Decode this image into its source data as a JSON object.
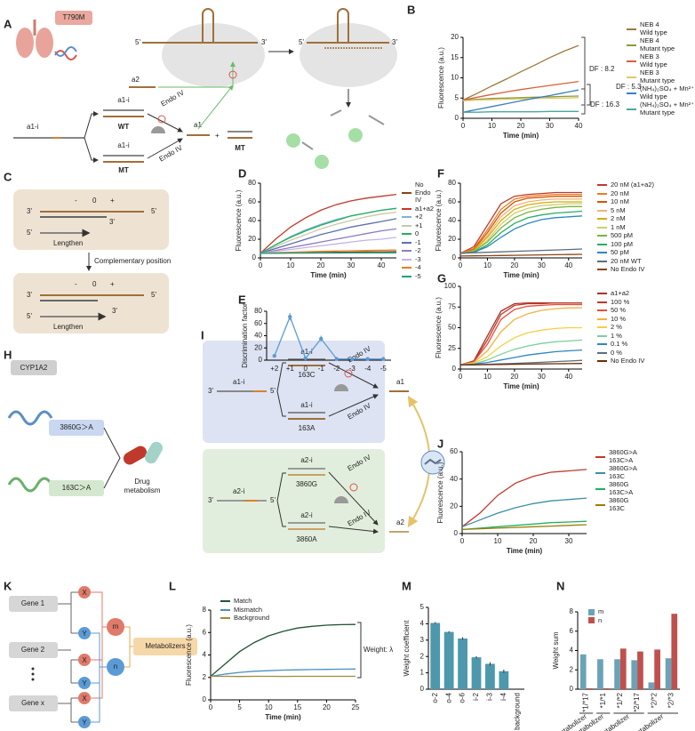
{
  "panel_letters": [
    "A",
    "B",
    "C",
    "D",
    "E",
    "F",
    "G",
    "H",
    "I",
    "J",
    "K",
    "L",
    "M",
    "N"
  ],
  "diagram_a": {
    "mutation": "T790M",
    "probe": "a2",
    "five": "5'",
    "three": "3'",
    "wt": "WT",
    "mt": "MT",
    "input": "a1-i",
    "enzyme": "Endo IV",
    "product": "a1",
    "plus": "+"
  },
  "diagram_c": {
    "three": "3'",
    "five": "5'",
    "minus": "-",
    "zero": "0",
    "plus": "+",
    "lengthen": "Lengthen",
    "step": "Complementary position"
  },
  "diagram_h": {
    "gene": "CYP1A2",
    "snp1": "3860G＞A",
    "snp2": "163C＞A",
    "outcome_1": "Drug",
    "outcome_2": "metabolism"
  },
  "diagram_i": {
    "three": "3'",
    "five": "5'",
    "input1": "a1-i",
    "input2": "a2-i",
    "allele1": "163C",
    "allele2": "163A",
    "allele3": "3860G",
    "allele4": "3860A",
    "enzyme": "Endo IV",
    "product1": "a1",
    "product2": "a2"
  },
  "diagram_k": {
    "gene1": "Gene 1",
    "gene2": "Gene 2",
    "genex": "Gene x",
    "x": "X",
    "y": "Y",
    "m": "m",
    "n": "n",
    "outcome": "Metabolizers"
  },
  "chart_data": [
    {
      "type": "line",
      "x_label": "Time (min)",
      "y_label": "Fluorescence (a.u.)",
      "x": [
        0,
        5,
        10,
        15,
        20,
        25,
        30,
        35,
        40
      ],
      "xlim": [
        0,
        40
      ],
      "xticks": [
        0,
        10,
        20,
        30,
        40
      ],
      "ylim": [
        0,
        20
      ],
      "yticks": [
        0,
        5,
        10,
        15,
        20
      ],
      "series": [
        {
          "name": "NEB 4\nWild type",
          "color": "#9c7a3c",
          "values": [
            4.5,
            6.2,
            8,
            9.7,
            11.5,
            13.2,
            15,
            16.6,
            18
          ]
        },
        {
          "name": "NEB 4\nMutant type",
          "color": "#8d9a3a",
          "values": [
            4.5,
            4.7,
            4.9,
            5.0,
            5.1,
            5.2,
            5.3,
            5.4,
            5.5
          ]
        },
        {
          "name": "NEB 3\nWild type",
          "color": "#d9603b",
          "values": [
            4.5,
            5.2,
            5.9,
            6.5,
            7.1,
            7.6,
            8.1,
            8.6,
            9.1
          ]
        },
        {
          "name": "NEB 3\nMutant type",
          "color": "#e3c86a",
          "values": [
            4.3,
            4.5,
            4.6,
            4.7,
            4.8,
            4.9,
            5.0,
            5.0,
            5.1
          ]
        },
        {
          "name": "(NH₄)₂SO₄ + Mn²⁺\nWild type",
          "color": "#3a7fc1",
          "values": [
            1.5,
            2.2,
            2.9,
            3.6,
            4.3,
            5,
            5.6,
            6.3,
            7
          ]
        },
        {
          "name": "(NH₄)₂SO₄ + Mn²⁺\nMutant type",
          "color": "#4aa89c",
          "values": [
            1.5,
            1.5,
            1.6,
            1.6,
            1.6,
            1.6,
            1.7,
            1.7,
            1.7
          ]
        }
      ],
      "annotations": [
        "DF : 8.2",
        "DF : 5.3",
        "DF : 16.3"
      ]
    },
    {
      "type": "line",
      "x_label": "Time (min)",
      "y_label": "Fluorescence (a.u.)",
      "x": [
        0,
        5,
        10,
        15,
        20,
        25,
        30,
        35,
        40,
        45
      ],
      "xlim": [
        0,
        45
      ],
      "xticks": [
        0,
        10,
        20,
        30,
        40
      ],
      "ylim": [
        0,
        80
      ],
      "yticks": [
        0,
        20,
        40,
        60,
        80
      ],
      "series": [
        {
          "name": "No Endo IV",
          "color": "#8b4513",
          "values": [
            5,
            5.2,
            5.4,
            5.6,
            5.8,
            6,
            6.2,
            6.4,
            6.6,
            6.8
          ]
        },
        {
          "name": "a1+a2",
          "color": "#c0392b",
          "values": [
            5,
            20,
            33,
            43,
            51,
            57,
            61,
            64,
            66,
            68
          ]
        },
        {
          "name": "+2",
          "color": "#7fb3d5",
          "values": [
            5,
            14,
            23,
            30,
            36,
            41,
            45,
            48,
            51,
            53
          ]
        },
        {
          "name": "+1",
          "color": "#c8c8a8",
          "values": [
            5,
            12,
            19,
            25,
            31,
            36,
            40,
            44,
            47,
            49
          ]
        },
        {
          "name": "0",
          "color": "#27ae60",
          "values": [
            5,
            14,
            22,
            29,
            35,
            40,
            45,
            48,
            51,
            53
          ]
        },
        {
          "name": "-1",
          "color": "#5b6fb3",
          "values": [
            5,
            10,
            15,
            20,
            25,
            29,
            33,
            36,
            39,
            42
          ]
        },
        {
          "name": "-2",
          "color": "#8e7cc3",
          "values": [
            5,
            8,
            11,
            14,
            17,
            20,
            23,
            26,
            29,
            31
          ]
        },
        {
          "name": "-3",
          "color": "#c5b3e6",
          "values": [
            5,
            7,
            9,
            11,
            13,
            15,
            17,
            19,
            20,
            22
          ]
        },
        {
          "name": "-4",
          "color": "#e67e22",
          "values": [
            5,
            5.5,
            6,
            6.5,
            7,
            7.3,
            7.6,
            7.9,
            8.2,
            8.5
          ]
        },
        {
          "name": "-5",
          "color": "#16a085",
          "values": [
            5,
            5,
            5.1,
            5.1,
            5.2,
            5.2,
            5.3,
            5.3,
            5.4,
            5.4
          ]
        }
      ]
    },
    {
      "type": "line",
      "y_label": "Discrimination factor",
      "categories": [
        "+2",
        "+1",
        "0",
        "-1",
        "-2",
        "-3",
        "-4",
        "-5"
      ],
      "values": [
        7,
        71,
        3,
        35,
        2,
        2,
        2,
        2
      ],
      "errors": [
        0,
        6,
        0,
        5,
        0,
        0,
        0,
        0
      ],
      "color": "#5b9bd5",
      "ylim": [
        0,
        80
      ],
      "yticks": [
        0,
        20,
        40,
        60,
        80
      ]
    },
    {
      "type": "line",
      "x_label": "Time (min)",
      "y_label": "Fluorescence (a.u.)",
      "x": [
        0,
        5,
        10,
        15,
        20,
        25,
        30,
        35,
        40,
        45
      ],
      "xlim": [
        0,
        45
      ],
      "xticks": [
        0,
        10,
        20,
        30,
        40
      ],
      "ylim": [
        0,
        80
      ],
      "yticks": [
        0,
        20,
        40,
        60,
        80
      ],
      "series": [
        {
          "name": "20 nM (a1+a2)",
          "color": "#c0392b",
          "values": [
            5,
            12,
            35,
            58,
            66,
            68,
            69,
            70,
            70,
            70
          ]
        },
        {
          "name": "20 nM",
          "color": "#e67e22",
          "values": [
            5,
            10,
            30,
            52,
            63,
            66,
            67,
            68,
            68,
            68
          ]
        },
        {
          "name": "10 nM",
          "color": "#d35400",
          "values": [
            5,
            9,
            27,
            48,
            60,
            64,
            65,
            66,
            66,
            66
          ]
        },
        {
          "name": "5 nM",
          "color": "#f0b27a",
          "values": [
            5,
            8,
            24,
            44,
            56,
            60,
            62,
            63,
            63,
            63
          ]
        },
        {
          "name": "2 nM",
          "color": "#d4ac0d",
          "values": [
            5,
            8,
            22,
            40,
            52,
            57,
            59,
            60,
            60,
            60
          ]
        },
        {
          "name": "1 nM",
          "color": "#c9d36a",
          "values": [
            5,
            7,
            19,
            36,
            48,
            53,
            56,
            57,
            58,
            58
          ]
        },
        {
          "name": "500 pM",
          "color": "#7cb342",
          "values": [
            5,
            7,
            17,
            32,
            43,
            49,
            52,
            54,
            55,
            55
          ]
        },
        {
          "name": "100 pM",
          "color": "#27ae60",
          "values": [
            5,
            6,
            14,
            27,
            37,
            43,
            46,
            48,
            49,
            50
          ]
        },
        {
          "name": "50 pM",
          "color": "#2e86c1",
          "values": [
            5,
            6,
            12,
            22,
            31,
            37,
            41,
            43,
            44,
            45
          ]
        },
        {
          "name": "20 nM WT",
          "color": "#5d6d7e",
          "values": [
            5,
            5.5,
            6,
            6.5,
            7,
            7.5,
            8,
            8.5,
            9,
            9.5
          ]
        },
        {
          "name": "No Endo IV",
          "color": "#8b4513",
          "values": [
            2,
            2.2,
            2.4,
            2.6,
            2.8,
            3,
            3.2,
            3.4,
            3.6,
            3.8
          ]
        }
      ]
    },
    {
      "type": "line",
      "x_label": "Time (min)",
      "y_label": "Fluorescence (a.u.)",
      "x": [
        0,
        5,
        10,
        15,
        20,
        25,
        30,
        35,
        40,
        45
      ],
      "xlim": [
        0,
        45
      ],
      "xticks": [
        0,
        10,
        20,
        30,
        40
      ],
      "ylim": [
        0,
        100
      ],
      "yticks": [
        0,
        25,
        50,
        75,
        100
      ],
      "series": [
        {
          "name": "a1+a2",
          "color": "#a93226",
          "values": [
            5,
            10,
            40,
            70,
            79,
            80,
            80,
            80,
            80,
            80
          ]
        },
        {
          "name": "100 %",
          "color": "#c0392b",
          "values": [
            5,
            9,
            35,
            66,
            77,
            79,
            79,
            80,
            80,
            80
          ]
        },
        {
          "name": "50 %",
          "color": "#e74c3c",
          "values": [
            5,
            9,
            30,
            60,
            72,
            76,
            77,
            78,
            78,
            78
          ]
        },
        {
          "name": "10 %",
          "color": "#f5b041",
          "values": [
            5,
            8,
            22,
            45,
            60,
            67,
            71,
            73,
            74,
            74
          ]
        },
        {
          "name": "2 %",
          "color": "#f4d03f",
          "values": [
            5,
            7,
            15,
            28,
            38,
            44,
            47,
            49,
            50,
            50
          ]
        },
        {
          "name": "1 %",
          "color": "#7dcea0",
          "values": [
            5,
            6,
            11,
            18,
            24,
            28,
            31,
            33,
            34,
            35
          ]
        },
        {
          "name": "0.1 %",
          "color": "#2e86c1",
          "values": [
            5,
            6,
            8,
            11,
            14,
            17,
            19,
            21,
            22,
            23
          ]
        },
        {
          "name": "0 %",
          "color": "#5d6d7e",
          "values": [
            5,
            5.3,
            5.7,
            6.2,
            6.8,
            7.5,
            8.2,
            9,
            9.7,
            10.5
          ]
        },
        {
          "name": "No Endo IV",
          "color": "#6e2c00",
          "values": [
            5,
            5.2,
            5.4,
            5.6,
            5.8,
            6,
            6.2,
            6.4,
            6.6,
            6.8
          ]
        }
      ]
    },
    {
      "type": "line",
      "x_label": "Time (min)",
      "y_label": "Fluorescence (a.u.)",
      "x": [
        0,
        5,
        10,
        15,
        20,
        25,
        30,
        35
      ],
      "xlim": [
        0,
        35
      ],
      "xticks": [
        0,
        10,
        20,
        30
      ],
      "ylim": [
        0,
        60
      ],
      "yticks": [
        0,
        20,
        40,
        60
      ],
      "series": [
        {
          "name": "3860G>A\n163C>A",
          "color": "#c0392b",
          "values": [
            5,
            15,
            28,
            37,
            42,
            45,
            46,
            47
          ]
        },
        {
          "name": "3860G>A\n163C",
          "color": "#3b8ea5",
          "values": [
            5,
            10,
            15,
            19,
            22,
            24,
            25,
            26
          ]
        },
        {
          "name": "3860G\n163C>A",
          "color": "#27ae60",
          "values": [
            3,
            4,
            5,
            6,
            7,
            8,
            8.5,
            9
          ]
        },
        {
          "name": "3860G\n163C",
          "color": "#9a7d0a",
          "values": [
            3,
            3.5,
            4,
            4.5,
            5,
            5.5,
            6,
            6.5
          ]
        }
      ]
    },
    {
      "type": "line",
      "x_label": "Time (min)",
      "y_label": "Fluorescence (a.u.)",
      "x": [
        0,
        2.5,
        5,
        7.5,
        10,
        12.5,
        15,
        17.5,
        20,
        22.5,
        25
      ],
      "xlim": [
        0,
        25
      ],
      "xticks": [
        0,
        5,
        10,
        15,
        20,
        25
      ],
      "ylim": [
        0,
        8
      ],
      "yticks": [
        0,
        2,
        4,
        6,
        8
      ],
      "series": [
        {
          "name": "Match",
          "color": "#1e5631",
          "values": [
            2.1,
            3.2,
            4.3,
            5.1,
            5.7,
            6.1,
            6.4,
            6.55,
            6.65,
            6.7,
            6.72
          ]
        },
        {
          "name": "Mismatch",
          "color": "#4a90c2",
          "values": [
            2.1,
            2.3,
            2.45,
            2.55,
            2.6,
            2.65,
            2.68,
            2.7,
            2.72,
            2.73,
            2.75
          ]
        },
        {
          "name": "Background",
          "color": "#a08a3a",
          "values": [
            2.1,
            2.1,
            2.08,
            2.1,
            2.1,
            2.09,
            2.1,
            2.1,
            2.1,
            2.1,
            2.1
          ]
        }
      ],
      "annotations": [
        "Weight: λ"
      ]
    },
    {
      "type": "bar",
      "y_label": "Weight coefficient",
      "categories": [
        "o-2",
        "o-4",
        "o-6",
        "i-2",
        "i-3",
        "i-4",
        "background"
      ],
      "values": [
        4.05,
        3.5,
        3.1,
        1.95,
        1.55,
        1.1,
        0
      ],
      "errors": [
        0.05,
        0.05,
        0.08,
        0.06,
        0.1,
        0.1,
        0
      ],
      "color": "#4e98ad",
      "ylim": [
        0,
        5
      ],
      "yticks": [
        0,
        1,
        2,
        3,
        4,
        5
      ]
    },
    {
      "type": "bar",
      "y_label": "Weight sum",
      "categories": [
        "*1/*17",
        "*1/*1",
        "*1/*2",
        "*2/*17",
        "*2/*2",
        "*2/*3"
      ],
      "series": [
        {
          "name": "m",
          "color": "#6aa3b8",
          "values": [
            3.6,
            3.1,
            3.1,
            3.0,
            0.7,
            3.2
          ]
        },
        {
          "name": "n",
          "color": "#c0504d",
          "values": [
            0.1,
            0.1,
            4.2,
            3.9,
            4.1,
            7.8
          ]
        }
      ],
      "groups": [
        "Ultrarapid Metabolizer",
        "Extensive Metabolizer",
        "Intermediate Metabolizer",
        "Poor Metabolizer"
      ],
      "ylim": [
        0,
        8
      ],
      "yticks": [
        0,
        2,
        4,
        6,
        8
      ]
    }
  ]
}
